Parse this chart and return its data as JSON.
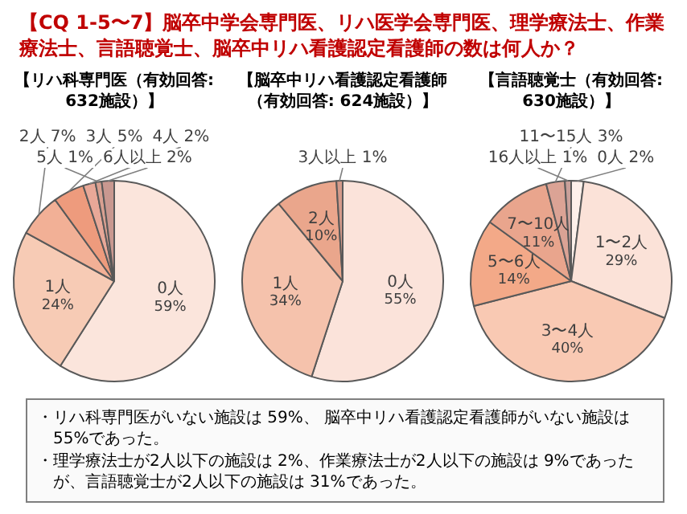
{
  "chart_data": [
    {
      "type": "other",
      "title": "【CQ 1-5〜7】脳卒中学会専門医、リハ医学会専門医、理学療法士、作業療法士、言語聴覚士、脳卒中リハ看護認定看護師の数は何人か？",
      "annotations": [
        "・リハ科専門医がいない施設は 59%、 脳卒中リハ看護認定看護師がいない施設は 55%であった。",
        "・理学療法士が2人以下の施設は 2%、作業療法士が2人以下の施設は 9%であったが、言語聴覚士が2人以下の施設は 31%であった。"
      ]
    },
    {
      "type": "pie",
      "title": "【リハ科専門医（有効回答: 632施設）】",
      "categories": [
        "0人",
        "1人",
        "2人",
        "3人",
        "4人",
        "5人",
        "6人以上"
      ],
      "values": [
        59,
        24,
        7,
        5,
        2,
        1,
        2
      ],
      "value_labels": [
        "59%",
        "24%",
        "7%",
        "5%",
        "2%",
        "1%",
        "2%"
      ],
      "colors": [
        "#fbe5dc",
        "#f7cbb5",
        "#f2b096",
        "#ee9b7d",
        "#e8a898",
        "#d9a091",
        "#c99890"
      ]
    },
    {
      "type": "pie",
      "title": "【脳卒中リハ看護認定看護師（有効回答: 624施設）】",
      "categories": [
        "0人",
        "1人",
        "2人",
        "3人以上"
      ],
      "values": [
        55,
        34,
        10,
        1
      ],
      "value_labels": [
        "55%",
        "34%",
        "10%",
        "1%"
      ],
      "colors": [
        "#fbe3da",
        "#f5c2ac",
        "#eaa68c",
        "#d49a8a"
      ]
    },
    {
      "type": "pie",
      "title": "【言語聴覚士（有効回答: 630施設）】",
      "categories": [
        "0人",
        "1〜2人",
        "3〜4人",
        "5〜6人",
        "7〜10人",
        "11〜15人",
        "16人以上"
      ],
      "values": [
        2,
        29,
        40,
        14,
        11,
        3,
        1
      ],
      "value_labels": [
        "2%",
        "29%",
        "40%",
        "14%",
        "11%",
        "3%",
        "1%"
      ],
      "colors": [
        "#fdf0ea",
        "#fbe2d8",
        "#f9c9b3",
        "#f3a988",
        "#e9a58d",
        "#dba395",
        "#c9a09a"
      ]
    }
  ]
}
